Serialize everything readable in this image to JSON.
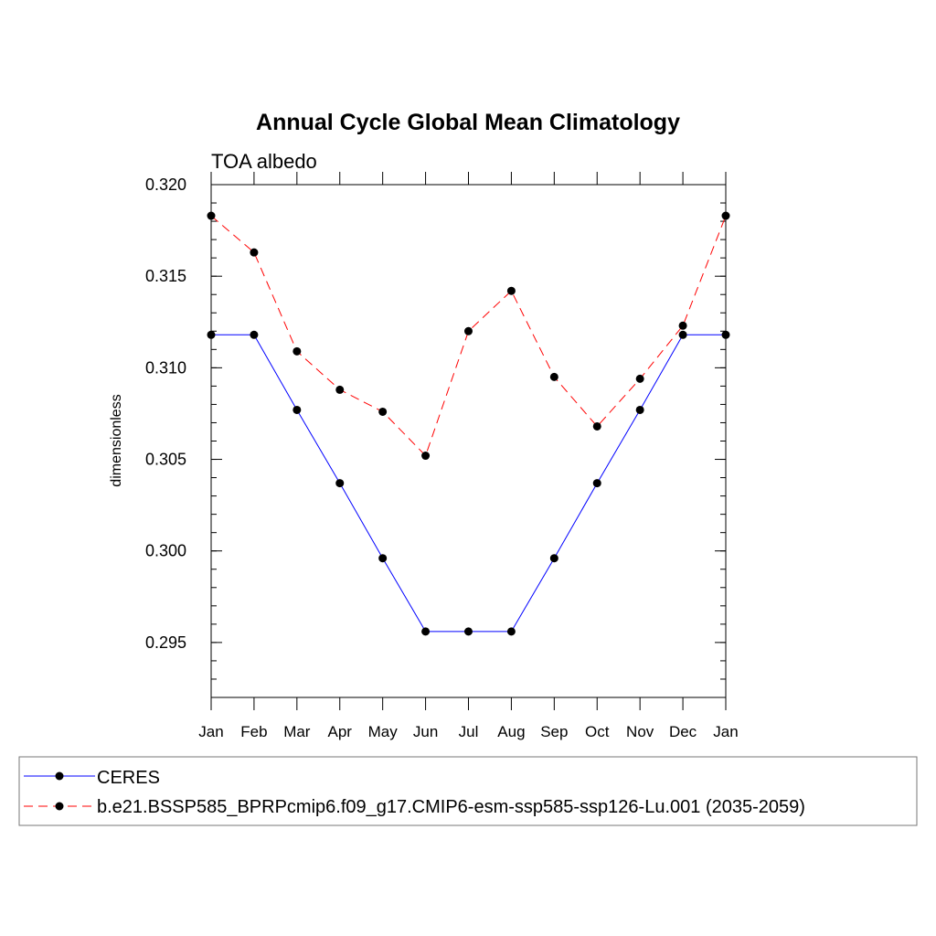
{
  "chart_data": {
    "type": "line",
    "title": "Annual Cycle Global Mean Climatology",
    "subtitle": "TOA albedo",
    "xlabel": "",
    "ylabel": "dimensionless",
    "categories": [
      "Jan",
      "Feb",
      "Mar",
      "Apr",
      "May",
      "Jun",
      "Jul",
      "Aug",
      "Sep",
      "Oct",
      "Nov",
      "Dec",
      "Jan"
    ],
    "y_ticks": [
      "0.320",
      "0.315",
      "0.310",
      "0.305",
      "0.300",
      "0.295"
    ],
    "ylim": [
      0.292,
      0.32
    ],
    "grid": false,
    "legend_position": "bottom",
    "series": [
      {
        "name": "CERES",
        "color": "#0000ff",
        "dash": "solid",
        "marker": "filled-circle",
        "values": [
          0.3118,
          0.3118,
          0.3077,
          0.3037,
          0.2996,
          0.2956,
          0.2956,
          0.2956,
          0.2996,
          0.3037,
          0.3077,
          0.3118,
          0.3118
        ]
      },
      {
        "name": "b.e21.BSSP585_BPRPcmip6.f09_g17.CMIP6-esm-ssp585-ssp126-Lu.001 (2035-2059)",
        "color": "#ff0000",
        "dash": "dashed",
        "marker": "filled-circle",
        "values": [
          0.3183,
          0.3163,
          0.3109,
          0.3088,
          0.3076,
          0.3052,
          0.312,
          0.3142,
          0.3095,
          0.3068,
          0.3094,
          0.3123,
          0.3183
        ]
      }
    ]
  }
}
